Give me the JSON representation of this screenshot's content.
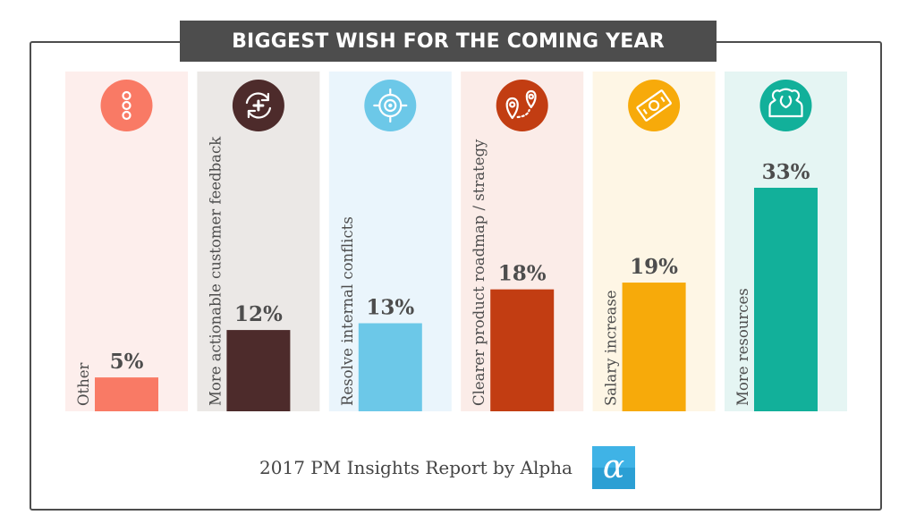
{
  "title": "BIGGEST WISH FOR THE COMING YEAR",
  "footer": {
    "text": "2017 PM Insights Report by Alpha",
    "logo_glyph": "α"
  },
  "chart_data": {
    "type": "bar",
    "categories": [
      "Other",
      "More actionable customer feedback",
      "Resolve internal conflicts",
      "Clearer product roadmap / strategy",
      "Salary increase",
      "More resources"
    ],
    "values": [
      5,
      12,
      13,
      18,
      19,
      33
    ],
    "value_labels": [
      "5%",
      "12%",
      "13%",
      "18%",
      "19%",
      "33%"
    ],
    "unit": "%",
    "colors": [
      "#f97a65",
      "#4d2b2b",
      "#6cc8e8",
      "#c23d12",
      "#f7aa0a",
      "#12b09a"
    ],
    "background_colors": [
      "#fdeeec",
      "#ebe8e6",
      "#eaf5fc",
      "#fbece8",
      "#fef6e5",
      "#e5f5f3"
    ],
    "icons": [
      "more-dots-icon",
      "refresh-plus-icon",
      "target-icon",
      "route-pins-icon",
      "money-bill-icon",
      "people-icon"
    ],
    "grid": false,
    "legend": "none"
  }
}
